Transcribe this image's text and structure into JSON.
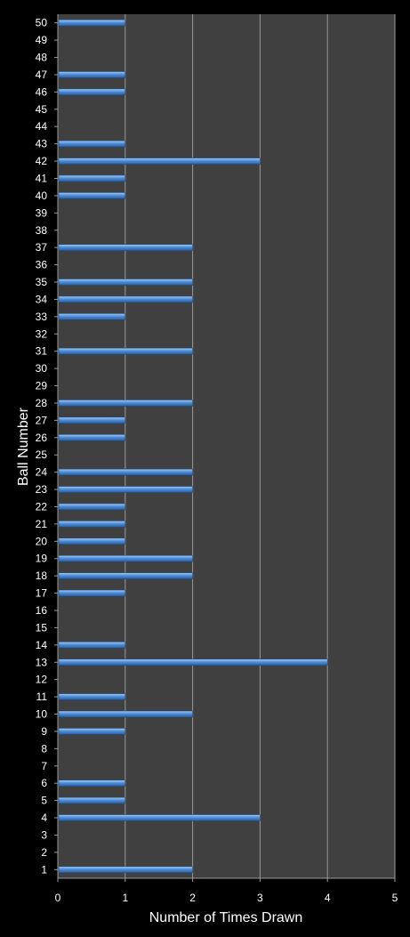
{
  "chart_data": {
    "type": "bar",
    "orientation": "horizontal",
    "title": "",
    "xlabel": "Number of Times Drawn",
    "ylabel": "Ball Number",
    "xlim": [
      0,
      5
    ],
    "xticks": [
      0,
      1,
      2,
      3,
      4,
      5
    ],
    "grid": true,
    "legend": "none",
    "colors": {
      "background": "#000000",
      "plot_area": "#404040",
      "bar": "#4f8fd8",
      "bar_light": "#a9cdf5",
      "bar_dark": "#2a5d9e",
      "grid": "#9a9a9a",
      "text": "#ffffff"
    },
    "categories": [
      "1",
      "2",
      "3",
      "4",
      "5",
      "6",
      "7",
      "8",
      "9",
      "10",
      "11",
      "12",
      "13",
      "14",
      "15",
      "16",
      "17",
      "18",
      "19",
      "20",
      "21",
      "22",
      "23",
      "24",
      "25",
      "26",
      "27",
      "28",
      "29",
      "30",
      "31",
      "32",
      "33",
      "34",
      "35",
      "36",
      "37",
      "38",
      "39",
      "40",
      "41",
      "42",
      "43",
      "44",
      "45",
      "46",
      "47",
      "48",
      "49",
      "50"
    ],
    "values": [
      2,
      0,
      0,
      3,
      1,
      1,
      0,
      0,
      1,
      2,
      1,
      0,
      4,
      1,
      0,
      0,
      1,
      2,
      2,
      1,
      1,
      1,
      2,
      2,
      0,
      1,
      1,
      2,
      0,
      0,
      2,
      0,
      1,
      2,
      2,
      0,
      2,
      0,
      0,
      1,
      1,
      3,
      1,
      0,
      0,
      1,
      1,
      0,
      0,
      1
    ]
  }
}
